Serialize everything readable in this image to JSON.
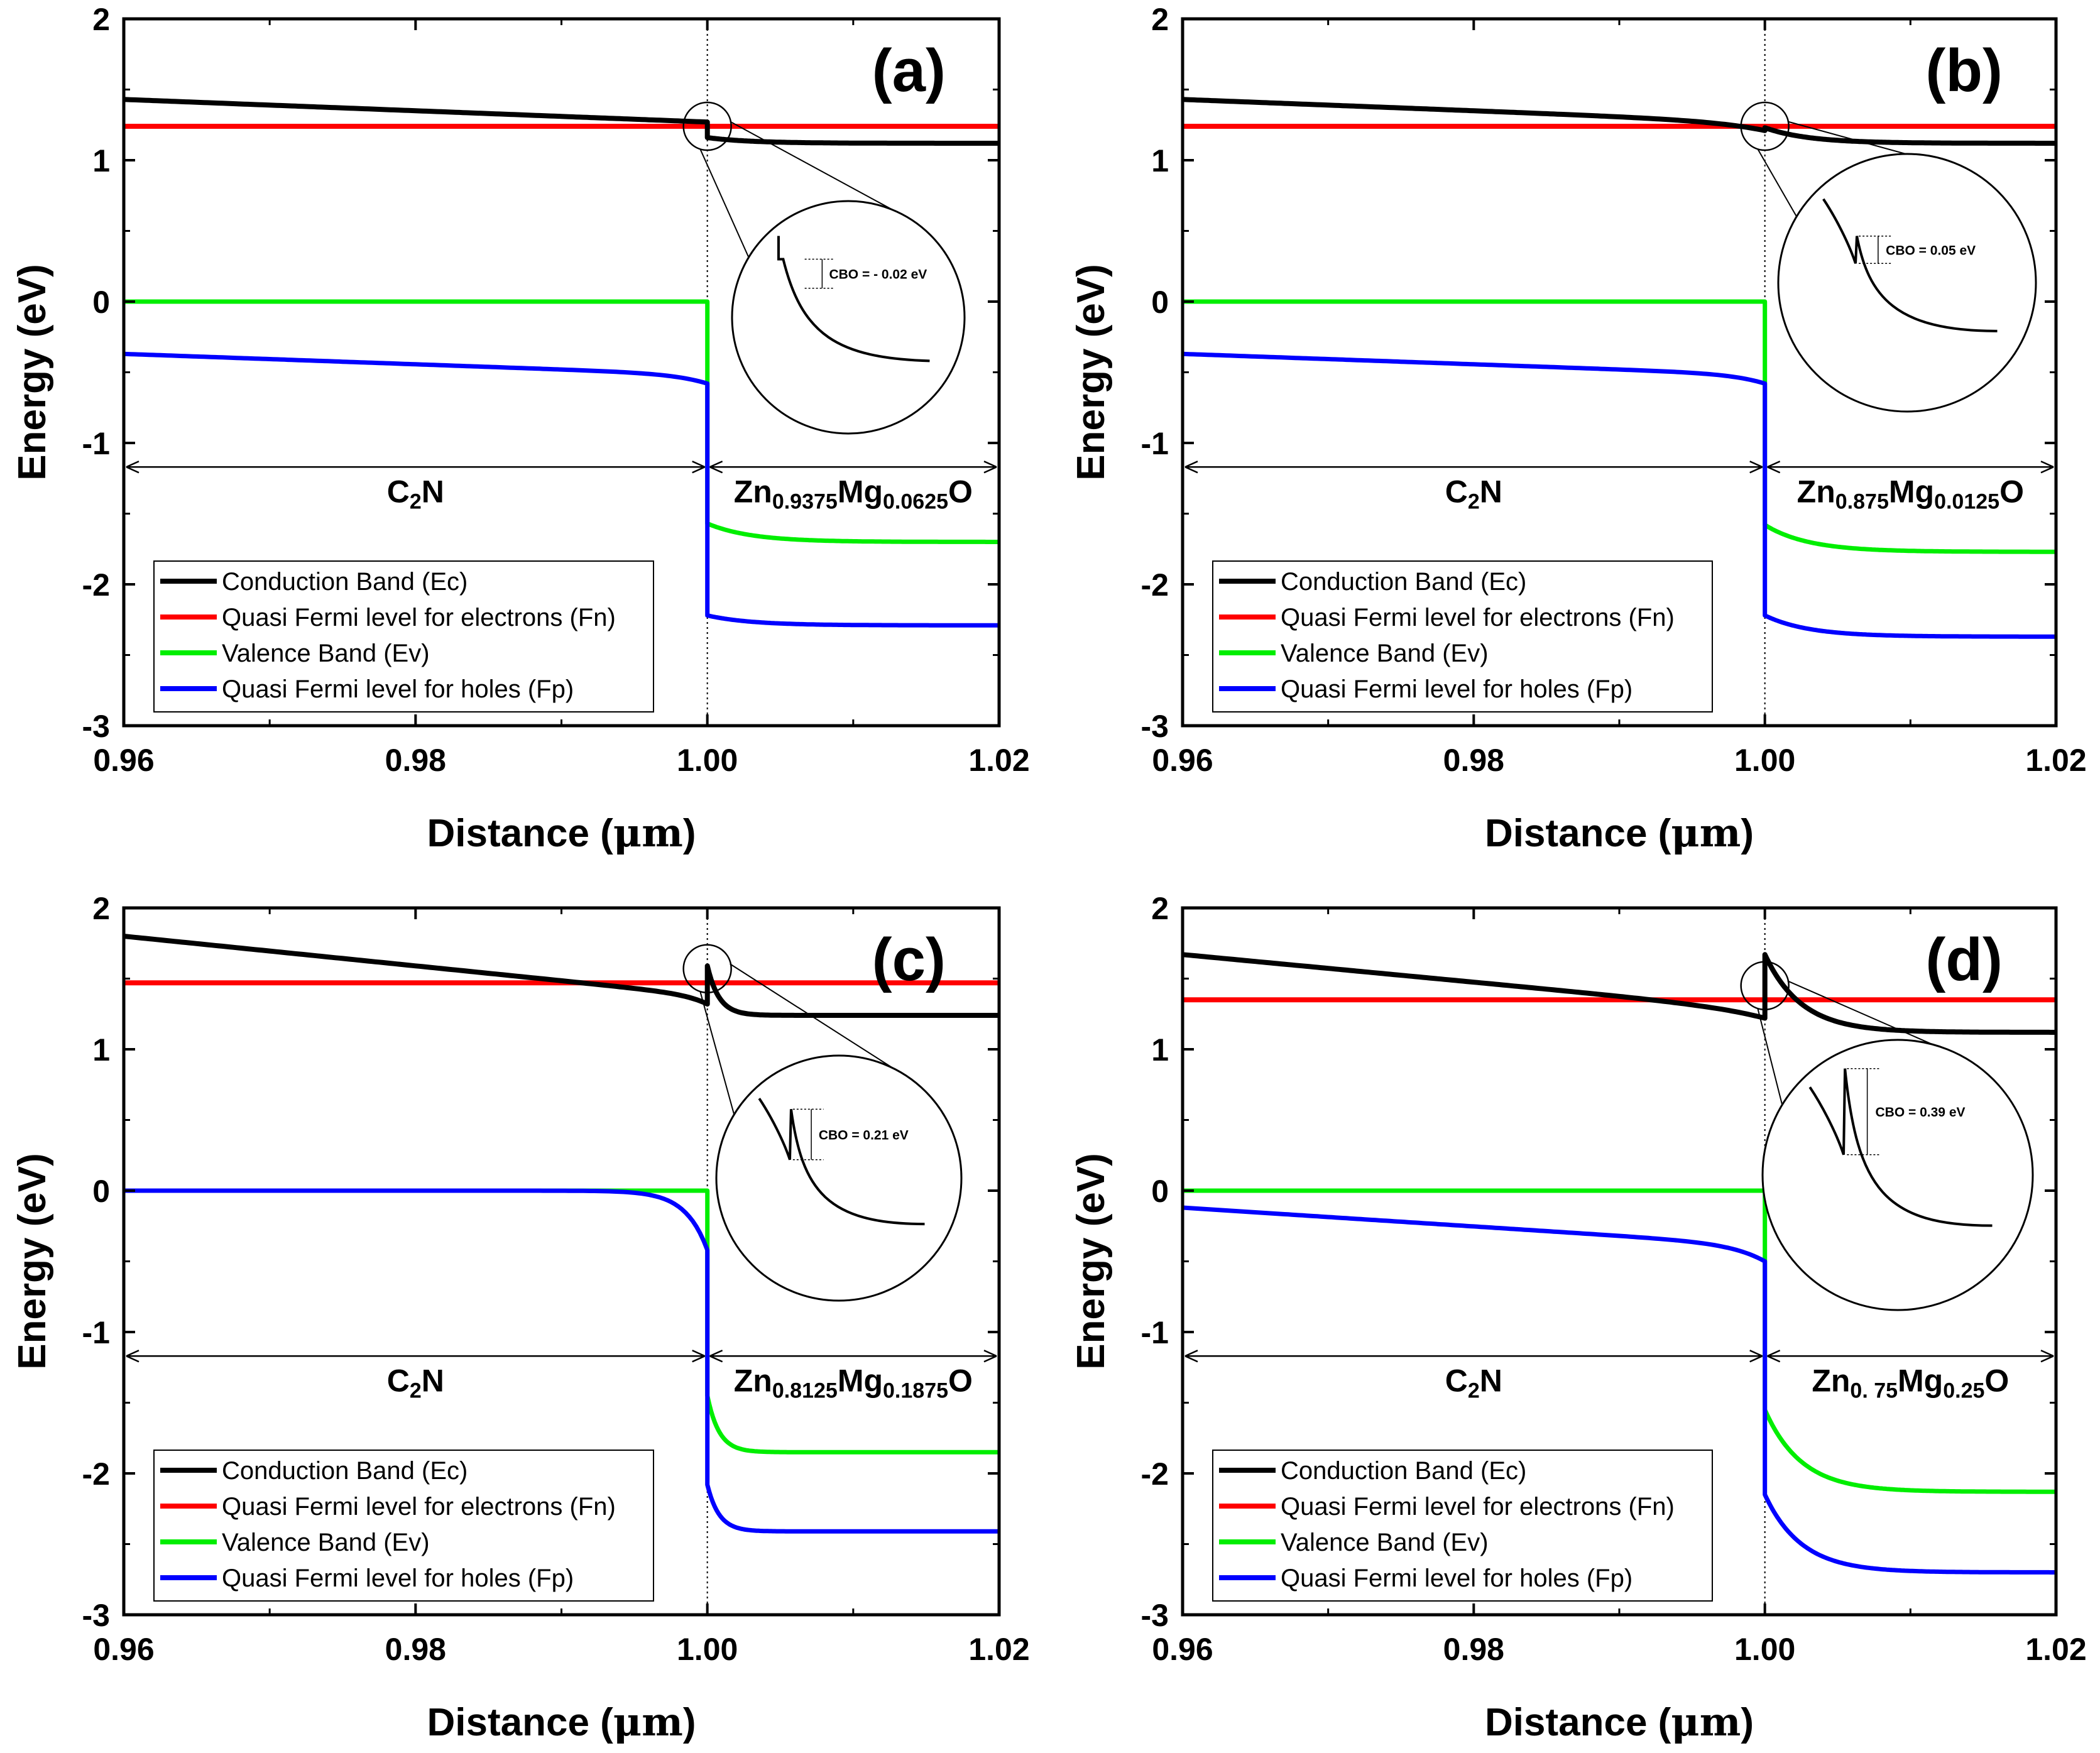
{
  "figure": {
    "panel_count": 4
  },
  "colors": {
    "conduction": "#000000",
    "fn": "#ff0000",
    "valence": "#00ee00",
    "fp": "#0000ff",
    "axis": "#000000"
  },
  "legend_entries": [
    "Conduction Band (Ec)",
    "Quasi Fermi level for electrons (Fn)",
    "Valence Band (Ev)",
    "Quasi Fermi level for holes (Fp)"
  ],
  "chart_data": [
    {
      "type": "line",
      "panel_label": "(a)",
      "xlabel_main": "Distance (",
      "xlabel_unit": "μm",
      "xlabel_close": ")",
      "ylabel": "Energy (eV)",
      "xlim": [
        0.96,
        1.02
      ],
      "ylim": [
        -3,
        2
      ],
      "x_ticks": [
        "0.96",
        "0.98",
        "1.00",
        "1.02"
      ],
      "y_ticks": [
        "-3",
        "-2",
        "-1",
        "0",
        "1",
        "2"
      ],
      "region_left": {
        "base": "C",
        "sub": "2",
        "tail": "N"
      },
      "region_right": {
        "el1": "Zn",
        "sub1": "0.9375",
        "el2": "Mg",
        "sub2": "0.0625",
        "tail": "O"
      },
      "cbo_text": "CBO = - 0.02 eV",
      "params": {
        "ec_left_start": 1.43,
        "ec_left_end": 1.27,
        "ec_right_start": 1.16,
        "ec_right_end": 1.12,
        "spike": 0,
        "fn": 1.24,
        "ev_right_start": -1.57,
        "ev_right_end": -1.7,
        "fp_left_start": -0.37,
        "fp_left_end": -0.58,
        "fp_right_start": -2.22,
        "fp_right_end": -2.29,
        "bend_width": 0.0035,
        "right_decay": 0.003,
        "fp_same_as_ev": false
      }
    },
    {
      "type": "line",
      "panel_label": "(b)",
      "xlabel_main": "Distance (",
      "xlabel_unit": "μm",
      "xlabel_close": ")",
      "ylabel": "Energy (eV)",
      "xlim": [
        0.96,
        1.02
      ],
      "ylim": [
        -3,
        2
      ],
      "x_ticks": [
        "0.96",
        "0.98",
        "1.00",
        "1.02"
      ],
      "y_ticks": [
        "-3",
        "-2",
        "-1",
        "0",
        "1",
        "2"
      ],
      "region_left": {
        "base": "C",
        "sub": "2",
        "tail": "N"
      },
      "region_right": {
        "el1": "Zn",
        "sub1": "0.875",
        "el2": "Mg",
        "sub2": "0.0125",
        "tail": "O"
      },
      "cbo_text": "CBO = 0.05 eV",
      "params": {
        "ec_left_start": 1.43,
        "ec_left_end": 1.27,
        "ec_right_start": 1.23,
        "ec_right_end": 1.12,
        "spike": 0.05,
        "fn": 1.24,
        "ev_right_start": -1.58,
        "ev_right_end": -1.77,
        "fp_left_start": -0.37,
        "fp_left_end": -0.58,
        "fp_right_start": -2.22,
        "fp_right_end": -2.37,
        "bend_width": 0.0035,
        "right_decay": 0.003,
        "fp_same_as_ev": false
      }
    },
    {
      "type": "line",
      "panel_label": "(c)",
      "xlabel_main": "Distance (",
      "xlabel_unit": "μm",
      "xlabel_close": ")",
      "ylabel": "Energy (eV)",
      "xlim": [
        0.96,
        1.02
      ],
      "ylim": [
        -3,
        2
      ],
      "x_ticks": [
        "0.96",
        "0.98",
        "1.00",
        "1.02"
      ],
      "y_ticks": [
        "-3",
        "-2",
        "-1",
        "0",
        "1",
        "2"
      ],
      "region_left": {
        "base": "C",
        "sub": "2",
        "tail": "N"
      },
      "region_right": {
        "el1": "Zn",
        "sub1": "0.8125",
        "el2": "Mg",
        "sub2": "0.1875",
        "tail": "O"
      },
      "cbo_text": "CBO = 0.21 eV",
      "params": {
        "ec_left_start": 1.8,
        "ec_left_end": 1.38,
        "ec_right_start": 1.59,
        "ec_right_end": 1.24,
        "spike": 0.21,
        "fn": 1.47,
        "ev_right_start": -1.45,
        "ev_right_end": -1.85,
        "fp_left_start": 0.0,
        "fp_left_end": -0.42,
        "fp_right_start": -2.08,
        "fp_right_end": -2.41,
        "bend_width": 0.0015,
        "right_decay": 0.0008,
        "fp_same_as_ev": true
      }
    },
    {
      "type": "line",
      "panel_label": "(d)",
      "xlabel_main": "Distance (",
      "xlabel_unit": "μm",
      "xlabel_close": ")",
      "ylabel": "Energy (eV)",
      "xlim": [
        0.96,
        1.02
      ],
      "ylim": [
        -3,
        2
      ],
      "x_ticks": [
        "0.96",
        "0.98",
        "1.00",
        "1.02"
      ],
      "y_ticks": [
        "-3",
        "-2",
        "-1",
        "0",
        "1",
        "2"
      ],
      "region_left": {
        "base": "C",
        "sub": "2",
        "tail": "N"
      },
      "region_right": {
        "el1": "Zn",
        "sub1": "0. 75",
        "el2": "Mg",
        "sub2": "0.25",
        "tail": "O"
      },
      "cbo_text": "CBO = 0.39 eV",
      "params": {
        "ec_left_start": 1.67,
        "ec_left_end": 1.28,
        "ec_right_start": 1.67,
        "ec_right_end": 1.12,
        "spike": 0.39,
        "fn": 1.35,
        "ev_right_start": -1.55,
        "ev_right_end": -2.13,
        "fp_left_start": -0.12,
        "fp_left_end": -0.5,
        "fp_right_start": -2.15,
        "fp_right_end": -2.7,
        "bend_width": 0.0035,
        "right_decay": 0.0025,
        "fp_same_as_ev": false
      }
    }
  ]
}
